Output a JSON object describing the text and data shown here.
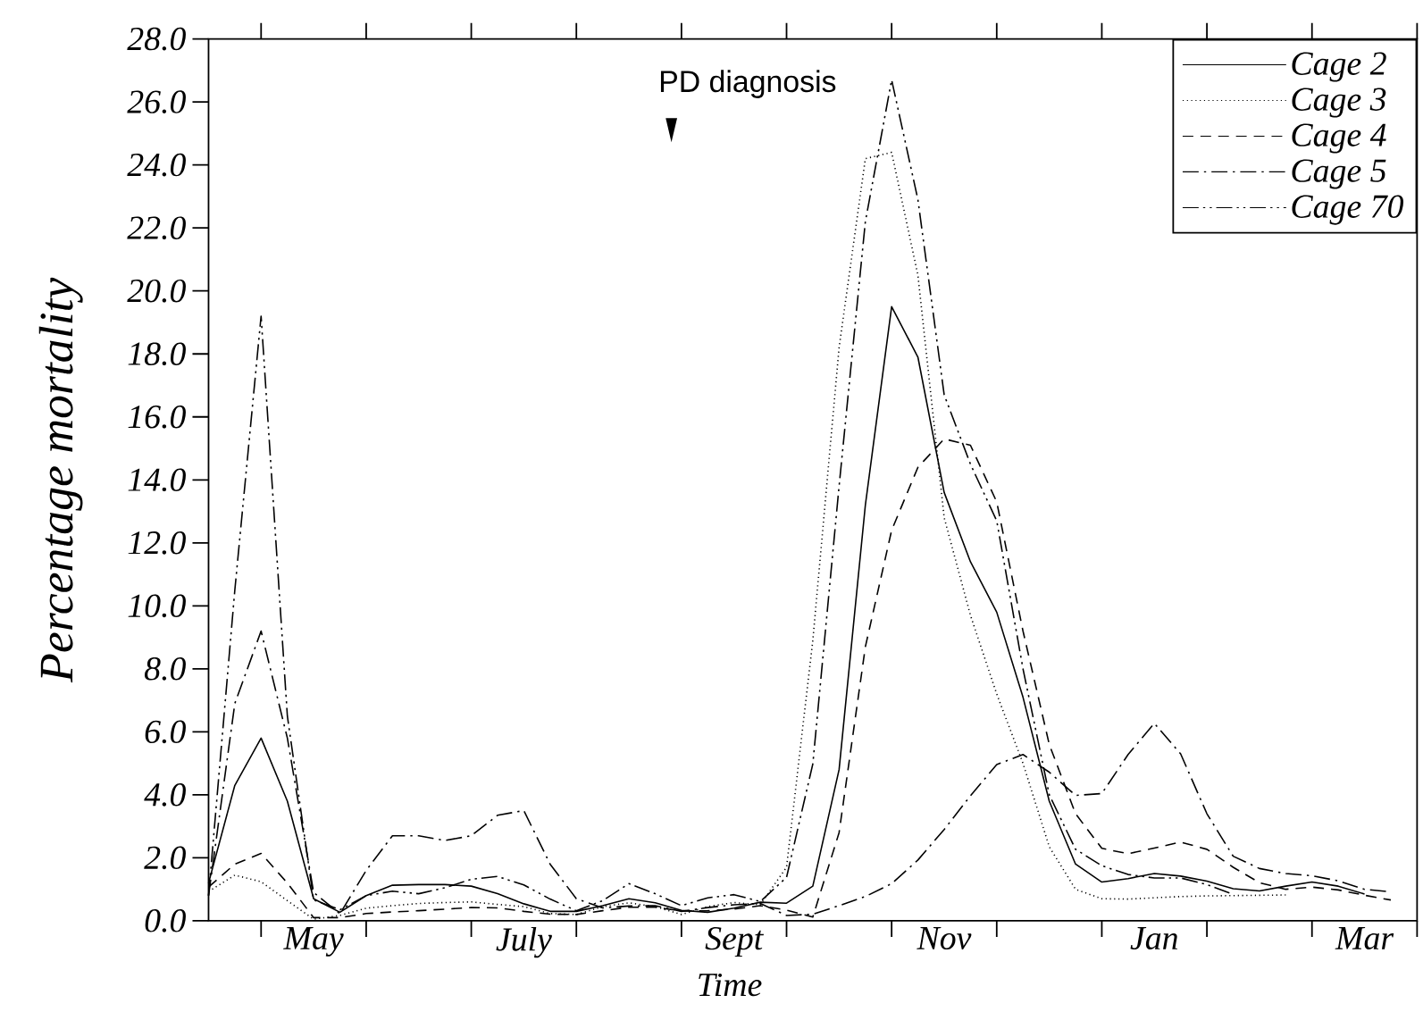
{
  "chart_data": {
    "type": "line",
    "xlabel": "Time",
    "ylabel": "Percentage mortality",
    "categories": [
      null,
      null,
      null,
      null,
      "May",
      null,
      null,
      null,
      null,
      null,
      null,
      null,
      "July",
      null,
      null,
      null,
      null,
      null,
      null,
      null,
      "Sept",
      null,
      null,
      null,
      null,
      null,
      null,
      null,
      "Nov",
      null,
      null,
      null,
      null,
      null,
      null,
      null,
      "Jan",
      null,
      null,
      null,
      null,
      null,
      null,
      null,
      "Mar",
      null
    ],
    "ylim": [
      0,
      28
    ],
    "yticks": [
      {
        "value": 0,
        "label": "0.0"
      },
      {
        "value": 2,
        "label": "2.0"
      },
      {
        "value": 4,
        "label": "4.0"
      },
      {
        "value": 6,
        "label": "6.0"
      },
      {
        "value": 8,
        "label": "8.0"
      },
      {
        "value": 10,
        "label": "10.0"
      },
      {
        "value": 12,
        "label": "12.0"
      },
      {
        "value": 14,
        "label": "14.0"
      },
      {
        "value": 16,
        "label": "16.0"
      },
      {
        "value": 18,
        "label": "18.0"
      },
      {
        "value": 20,
        "label": "20.0"
      },
      {
        "value": 22,
        "label": "22.0"
      },
      {
        "value": 24,
        "label": "24.0"
      },
      {
        "value": 26,
        "label": "26.0"
      },
      {
        "value": 28,
        "label": "28.0"
      }
    ],
    "legend": "top right",
    "marker": "none",
    "annotations": [
      "PD diagnosis"
    ],
    "series": [
      {
        "name": "Cage 2",
        "color": "#000000",
        "line_style": "solid",
        "values": [
          1.2,
          4.3,
          5.8,
          3.8,
          0.7,
          0.27,
          0.8,
          1.13,
          1.15,
          1.15,
          1.1,
          0.86,
          0.54,
          0.3,
          0.3,
          0.48,
          0.7,
          0.57,
          0.33,
          0.27,
          0.4,
          0.59,
          0.56,
          1.1,
          4.8,
          13.2,
          19.5,
          17.9,
          13.6,
          11.4,
          9.8,
          7.1,
          3.8,
          1.8,
          1.23,
          1.34,
          1.5,
          1.42,
          1.26,
          1.02,
          0.95,
          1.1,
          1.23,
          1.1,
          0.85,
          null
        ]
      },
      {
        "name": "Cage 3",
        "color": "#000000",
        "line_style": "dotted",
        "values": [
          0.93,
          1.45,
          1.24,
          0.64,
          0.05,
          0.17,
          0.4,
          0.48,
          0.55,
          0.58,
          0.6,
          0.52,
          0.45,
          0.23,
          0.2,
          0.45,
          0.57,
          0.45,
          0.2,
          0.45,
          0.58,
          0.51,
          1.7,
          8.9,
          18.2,
          24.2,
          24.4,
          20.5,
          12.8,
          9.7,
          7.2,
          5.0,
          2.35,
          1.0,
          0.7,
          0.69,
          0.73,
          0.77,
          0.79,
          0.8,
          0.81,
          0.82,
          null,
          null,
          null,
          null
        ]
      },
      {
        "name": "Cage 4",
        "color": "#000000",
        "line_style": "dashed",
        "values": [
          1.07,
          1.8,
          2.14,
          1.2,
          0.1,
          0.1,
          0.23,
          0.28,
          0.32,
          0.37,
          0.42,
          0.41,
          0.3,
          0.21,
          0.2,
          0.32,
          0.43,
          0.43,
          0.31,
          0.32,
          0.37,
          0.48,
          0.34,
          0.12,
          2.8,
          8.7,
          12.4,
          14.4,
          15.3,
          15.1,
          13.3,
          9.2,
          5.6,
          3.4,
          2.3,
          2.13,
          2.31,
          2.5,
          2.27,
          1.7,
          1.21,
          1.0,
          1.07,
          0.98,
          0.81,
          0.66
        ]
      },
      {
        "name": "Cage 5",
        "color": "#000000",
        "line_style": "dashdot",
        "values": [
          0.8,
          6.9,
          9.2,
          5.8,
          0.9,
          0.22,
          1.6,
          2.7,
          2.7,
          2.55,
          2.7,
          3.35,
          3.5,
          1.8,
          0.7,
          0.41,
          0.47,
          0.48,
          0.3,
          0.42,
          0.51,
          0.55,
          0.17,
          0.21,
          0.48,
          0.77,
          1.18,
          1.93,
          2.9,
          3.97,
          4.96,
          5.28,
          4.72,
          3.98,
          4.04,
          5.28,
          6.27,
          5.3,
          3.4,
          2.05,
          1.66,
          1.5,
          1.43,
          1.27,
          1.0,
          0.92
        ]
      },
      {
        "name": "Cage 70",
        "color": "#000000",
        "line_style": "dashdotdot",
        "values": [
          0.8,
          10.5,
          19.2,
          6.5,
          0.66,
          0.35,
          0.8,
          0.94,
          0.86,
          1.05,
          1.32,
          1.41,
          1.14,
          0.69,
          0.32,
          0.64,
          1.18,
          0.86,
          0.48,
          0.73,
          0.83,
          0.61,
          1.38,
          4.98,
          13.8,
          22.2,
          26.7,
          22.9,
          16.7,
          14.5,
          12.7,
          8.0,
          4.0,
          2.27,
          1.75,
          1.47,
          1.36,
          1.36,
          1.15,
          0.84,
          null,
          null,
          null,
          null,
          null,
          null
        ]
      }
    ]
  }
}
